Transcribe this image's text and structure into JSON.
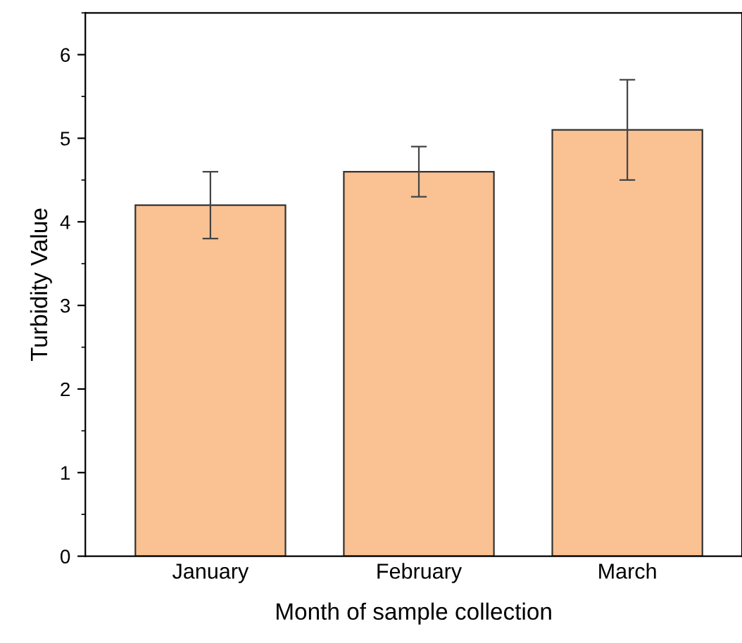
{
  "chart_data": {
    "type": "bar",
    "xlabel": "Month of sample collection",
    "ylabel": "Turbidity Value",
    "categories": [
      "January",
      "February",
      "March"
    ],
    "values": [
      4.2,
      4.6,
      5.1
    ],
    "errors": [
      [
        3.8,
        4.6
      ],
      [
        4.3,
        4.9
      ],
      [
        4.5,
        5.7
      ]
    ],
    "color": "#fac192",
    "ylim": [
      0,
      6.5
    ],
    "yticks": [
      0,
      1,
      2,
      3,
      4,
      5,
      6
    ],
    "grid": false,
    "legend": false
  }
}
